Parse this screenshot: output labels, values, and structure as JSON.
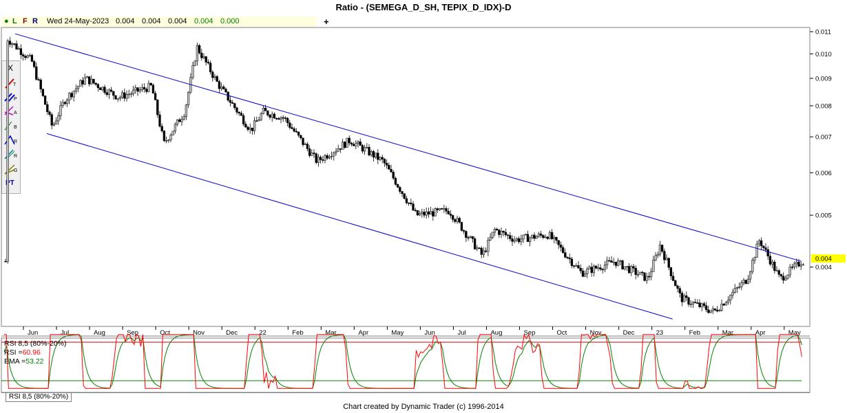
{
  "title": "Ratio - (SEMEGA_D_SH, TEPIX_D_IDX)-D",
  "infobar": {
    "indicators": [
      "●",
      "L",
      "F",
      "R"
    ],
    "date": "Wed 24-May-2023",
    "open": "0.004",
    "high": "0.004",
    "low": "0.004",
    "close": "0.004",
    "change": "0.000"
  },
  "toolbar": {
    "items": [
      "X",
      "T",
      "P",
      "A",
      "B",
      "R",
      "R",
      "G",
      "PT"
    ]
  },
  "colors": {
    "channel": "#0000cc",
    "rsi": "#ff0000",
    "ema": "#008000",
    "price_label_bg": "#ffff00",
    "up_candle": "#c0c0c0",
    "down_candle": "#000000"
  },
  "chart_data": {
    "type": "candlestick",
    "title": "Ratio - (SEMEGA_D_SH, TEPIX_D_IDX)-D",
    "price_axis": {
      "scale": "log",
      "ticks": [
        "0.011",
        "0.010",
        "0.009",
        "0.008",
        "0.007",
        "0.006",
        "0.005",
        "0.004"
      ],
      "current_label": "0.004"
    },
    "time_axis": {
      "labels": [
        "Jun",
        "Jul",
        "Aug",
        "Sep",
        "Oct",
        "Nov",
        "Dec",
        "22",
        "Feb",
        "Mar",
        "Apr",
        "May",
        "Jun",
        "Jul",
        "Aug",
        "Sep",
        "Oct",
        "Nov",
        "Dec",
        "23",
        "Feb",
        "Mar",
        "Apr",
        "May"
      ]
    },
    "price_path": [
      {
        "month": "Jun",
        "value": 0.0107
      },
      {
        "month": "Jun",
        "value": 0.0097
      },
      {
        "month": "Jul",
        "value": 0.0073
      },
      {
        "month": "Jul",
        "value": 0.0082
      },
      {
        "month": "Aug",
        "value": 0.009
      },
      {
        "month": "Sep",
        "value": 0.0083
      },
      {
        "month": "Oct",
        "value": 0.0087
      },
      {
        "month": "Oct",
        "value": 0.0068
      },
      {
        "month": "Nov",
        "value": 0.0078
      },
      {
        "month": "Nov",
        "value": 0.0103
      },
      {
        "month": "Dec",
        "value": 0.0088
      },
      {
        "month": "22",
        "value": 0.0072
      },
      {
        "month": "22",
        "value": 0.0078
      },
      {
        "month": "Feb",
        "value": 0.0076
      },
      {
        "month": "Mar",
        "value": 0.0063
      },
      {
        "month": "Apr",
        "value": 0.0069
      },
      {
        "month": "May",
        "value": 0.0063
      },
      {
        "month": "Jun",
        "value": 0.005
      },
      {
        "month": "Jul",
        "value": 0.0051
      },
      {
        "month": "Aug",
        "value": 0.0042
      },
      {
        "month": "Aug",
        "value": 0.0047
      },
      {
        "month": "Sep",
        "value": 0.0045
      },
      {
        "month": "Oct",
        "value": 0.0046
      },
      {
        "month": "Nov",
        "value": 0.0039
      },
      {
        "month": "Dec",
        "value": 0.0041
      },
      {
        "month": "23",
        "value": 0.0038
      },
      {
        "month": "23",
        "value": 0.0044
      },
      {
        "month": "Feb",
        "value": 0.0035
      },
      {
        "month": "Mar",
        "value": 0.0033
      },
      {
        "month": "Apr",
        "value": 0.0038
      },
      {
        "month": "Apr",
        "value": 0.0045
      },
      {
        "month": "May",
        "value": 0.0038
      },
      {
        "month": "May",
        "value": 0.0041
      }
    ],
    "channel": {
      "upper": [
        {
          "month": "Jun",
          "value": 0.0109
        },
        {
          "month": "May",
          "value": 0.0041
        }
      ],
      "lower": [
        {
          "month": "Jul",
          "value": 0.0071
        },
        {
          "month": "23",
          "value": 0.0032
        }
      ]
    },
    "rsi_panel": {
      "label": "RSI 8,5 (80%-20%)",
      "rsi_text": "RSI =",
      "rsi_value": "60.96",
      "ema_text": "EMA =",
      "ema_value": "53.22",
      "upper_level": 80,
      "lower_level": 20,
      "tab_label": "RSI 8,5 (80%-20%)"
    }
  },
  "footer": "Chart created by Dynamic Trader  (c) 1996-2014"
}
